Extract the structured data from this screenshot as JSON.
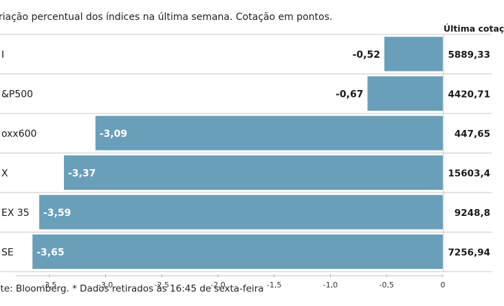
{
  "subtitle": "riação percentual dos índices na última semana. Cotação em pontos.",
  "column_header": "Última cotaç",
  "source": "nte: Bloomberg.  * Dados retirados às 16:45 de sexta-feira",
  "colors": {
    "bar": "#6a9fba",
    "divider": "#c8c8c8",
    "axis": "#bfbfbf"
  },
  "chart_data": {
    "type": "bar",
    "orientation": "horizontal",
    "categories": [
      "I",
      "&P500",
      "oxx600",
      "X",
      "EX 35",
      "SE"
    ],
    "values": [
      -0.52,
      -0.67,
      -3.09,
      -3.37,
      -3.59,
      -3.65
    ],
    "value_labels": [
      "-0,52",
      "-0,67",
      "-3,09",
      "-3,37",
      "-3,59",
      "-3,65"
    ],
    "last_quotes": [
      "5889,33",
      "4420,71",
      "447,65",
      "15603,4",
      "9248,8",
      "7256,94"
    ],
    "xlim": [
      -3.8,
      0
    ],
    "xticks": [
      -3.5,
      -3.0,
      -2.5,
      -2.0,
      -1.5,
      -1.0,
      -0.5,
      0
    ],
    "xtick_labels": [
      "-3,5",
      "-3,0",
      "-2,5",
      "-2,0",
      "-1,5",
      "-1,0",
      "-0,5",
      "0"
    ],
    "grid": false
  }
}
